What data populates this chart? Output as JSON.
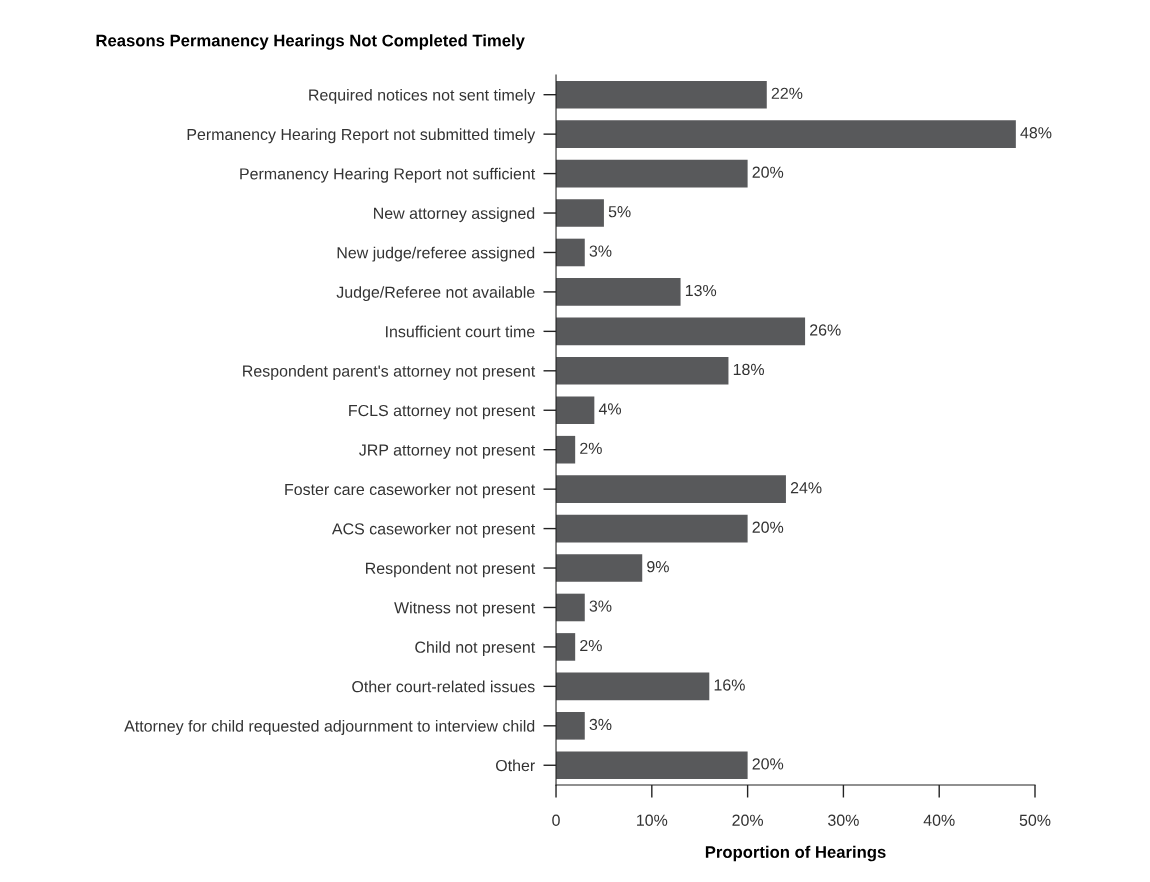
{
  "chart_data": {
    "type": "bar",
    "orientation": "horizontal",
    "title": "Reasons Permanency Hearings Not Completed Timely",
    "xlabel": "Proportion of Hearings",
    "categories": [
      "Required notices not sent timely",
      "Permanency Hearing Report not submitted timely",
      "Permanency Hearing Report not sufficient",
      "New attorney assigned",
      "New judge/referee assigned",
      "Judge/Referee not available",
      "Insufficient court time",
      "Respondent parent's attorney not present",
      "FCLS attorney not present",
      "JRP attorney not present",
      "Foster care caseworker not present",
      "ACS caseworker not present",
      "Respondent not present",
      "Witness not present",
      "Child not present",
      "Other court-related issues",
      "Attorney for child requested adjournment to interview child",
      "Other"
    ],
    "values": [
      22,
      48,
      20,
      5,
      3,
      13,
      26,
      18,
      4,
      2,
      24,
      20,
      9,
      3,
      2,
      16,
      3,
      20
    ],
    "value_labels": [
      "22%",
      "48%",
      "20%",
      "5%",
      "3%",
      "13%",
      "26%",
      "18%",
      "4%",
      "2%",
      "24%",
      "20%",
      "9%",
      "3%",
      "2%",
      "16%",
      "3%",
      "20%"
    ],
    "color": "#58595b",
    "xlim": [
      0,
      50
    ],
    "xticks": [
      {
        "value": 0,
        "label": "0"
      },
      {
        "value": 10,
        "label": "10%"
      },
      {
        "value": 20,
        "label": "20%"
      },
      {
        "value": 30,
        "label": "30%"
      },
      {
        "value": 40,
        "label": "40%"
      },
      {
        "value": 50,
        "label": "50%"
      }
    ],
    "grid": false,
    "legend": false
  }
}
